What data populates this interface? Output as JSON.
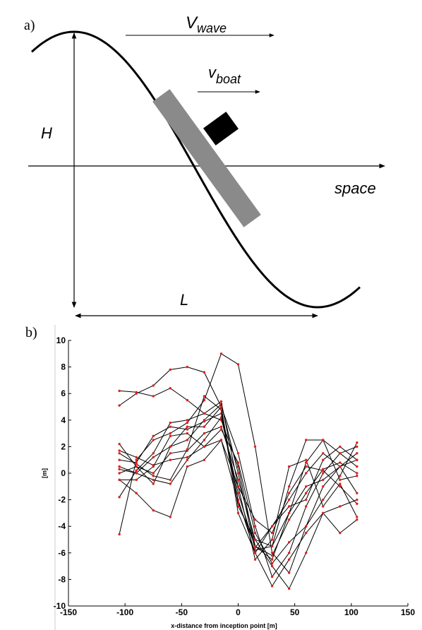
{
  "diagram": {
    "panel_label": "a)",
    "wave_speed": {
      "symbol": "V",
      "subscript": "wave"
    },
    "boat_speed": {
      "symbol": "v",
      "subscript": "boat"
    },
    "height_label": "H",
    "axis_label": "space",
    "length_label": "L"
  },
  "chart_data": {
    "type": "line",
    "panel_label": "b)",
    "x_label": "x-distance from inception point [m]",
    "y_label": "[m]",
    "line_color": "#000000",
    "marker_color": "#e0201c",
    "xlim": [
      -150,
      150
    ],
    "xticks": [
      -150,
      -100,
      -50,
      0,
      50,
      100,
      150
    ],
    "ylim": [
      -10,
      10
    ],
    "yticks": [
      -10,
      -8,
      -6,
      -4,
      -2,
      0,
      2,
      4,
      6,
      8,
      10
    ],
    "x": [
      -105,
      -90,
      -75,
      -60,
      -45,
      -30,
      -15,
      0,
      15,
      30,
      45,
      60,
      75,
      90,
      105
    ],
    "series": [
      {
        "values": [
          6.2,
          6.1,
          5.8,
          6.4,
          5.5,
          4.5,
          4.0,
          0.5,
          -5.5,
          -6.5,
          -3.0,
          -1.0,
          -0.5,
          0.5,
          1.5
        ]
      },
      {
        "values": [
          5.1,
          6.0,
          6.6,
          7.8,
          8.0,
          7.6,
          5.0,
          1.5,
          -4.0,
          -7.8,
          -6.0,
          -2.5,
          0.0,
          1.5,
          2.0
        ]
      },
      {
        "values": [
          -4.6,
          1.0,
          2.5,
          3.0,
          3.8,
          5.5,
          9.0,
          8.2,
          2.0,
          -6.0,
          -7.5,
          -4.0,
          -1.0,
          0.5,
          -1.5
        ]
      },
      {
        "values": [
          2.2,
          0.5,
          -0.8,
          2.0,
          2.5,
          4.0,
          5.2,
          0.0,
          -5.8,
          -5.5,
          -1.0,
          2.5,
          2.5,
          -0.5,
          -0.2
        ]
      },
      {
        "values": [
          -1.8,
          0.2,
          1.5,
          3.8,
          4.0,
          4.5,
          5.4,
          -1.0,
          -6.5,
          -5.0,
          0.5,
          1.0,
          -2.5,
          -0.8,
          -3.3
        ]
      },
      {
        "values": [
          0.5,
          0.0,
          -0.5,
          -0.8,
          1.0,
          2.5,
          4.2,
          -1.5,
          -5.6,
          -4.0,
          -2.0,
          0.0,
          1.5,
          0.5,
          1.0
        ]
      },
      {
        "values": [
          1.0,
          0.8,
          2.8,
          3.5,
          3.3,
          3.9,
          4.5,
          -2.0,
          -6.0,
          -8.5,
          -6.5,
          -4.5,
          -3.0,
          -2.5,
          -2.0
        ]
      },
      {
        "values": [
          0.0,
          0.5,
          0.0,
          1.5,
          1.7,
          3.0,
          3.5,
          -0.5,
          -5.0,
          -7.0,
          -8.7,
          -6.0,
          -3.0,
          -4.5,
          -3.5
        ]
      },
      {
        "values": [
          -0.5,
          -1.5,
          -2.8,
          -3.3,
          0.5,
          1.0,
          2.5,
          -2.2,
          -5.5,
          -6.2,
          -3.5,
          -1.5,
          0.3,
          0.8,
          0.0
        ]
      },
      {
        "values": [
          1.7,
          1.2,
          0.6,
          1.0,
          1.2,
          2.0,
          3.3,
          0.8,
          -4.5,
          -6.8,
          -5.2,
          -4.0,
          -2.0,
          -0.2,
          2.3
        ]
      },
      {
        "values": [
          0.3,
          0.0,
          1.2,
          2.0,
          3.5,
          3.5,
          5.0,
          -2.5,
          -5.0,
          -5.5,
          -3.0,
          0.8,
          2.5,
          1.5,
          0.5
        ]
      },
      {
        "values": [
          -0.5,
          -0.5,
          0.5,
          2.8,
          3.0,
          2.0,
          2.5,
          -1.0,
          -3.5,
          -4.5,
          -1.5,
          0.5,
          0.2,
          -1.0,
          -2.3
        ]
      },
      {
        "values": [
          1.5,
          0.7,
          -0.2,
          -0.5,
          1.8,
          5.8,
          4.8,
          -3.0,
          -6.0,
          -4.0,
          -2.5,
          -2.0,
          1.0,
          2.0,
          1.0
        ]
      }
    ]
  }
}
